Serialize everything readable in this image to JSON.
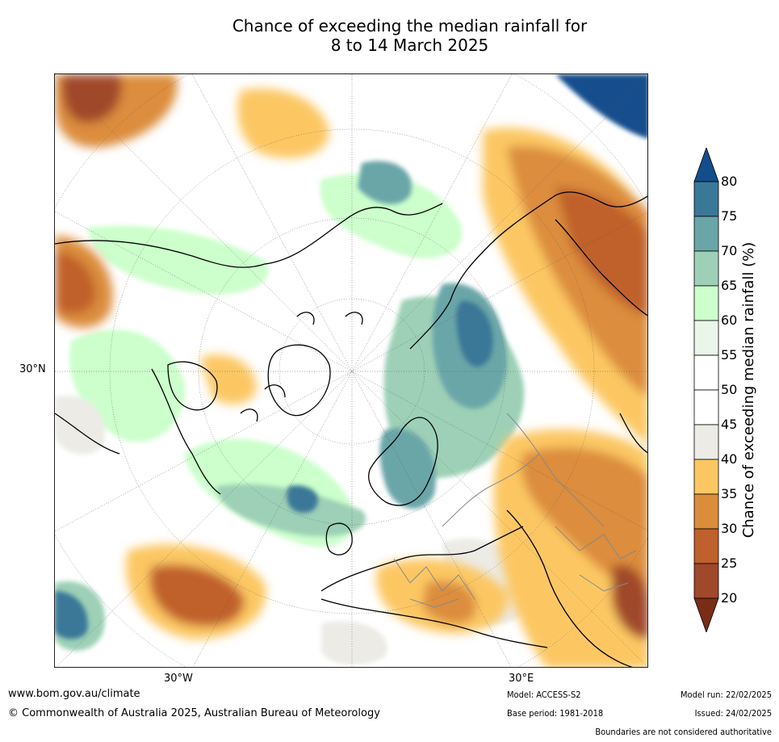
{
  "title": {
    "line1": "Chance of exceeding the median rainfall for",
    "line2": "8 to 14 March 2025"
  },
  "map": {
    "lat_label": "30°N",
    "lon_labels": [
      "30°W",
      "30°E"
    ]
  },
  "colorbar": {
    "label": "Chance of exceeding median rainfall (%)",
    "ticks": [
      "80",
      "75",
      "70",
      "65",
      "60",
      "55",
      "50",
      "45",
      "40",
      "35",
      "30",
      "25",
      "20"
    ],
    "colors": {
      "above_80": "#124e8c",
      "75_80": "#3a7898",
      "70_75": "#6aa6a8",
      "65_70": "#9dd0b6",
      "60_65": "#ccffcc",
      "55_60": "#eaf6ea",
      "50_55": "#ffffff",
      "45_50": "#ffffff",
      "40_45": "#ecebe6",
      "35_40": "#fcc763",
      "30_35": "#dc8d3c",
      "25_30": "#c0602c",
      "20_25": "#a0482a",
      "below_20": "#7a2c16"
    }
  },
  "footer": {
    "website": "www.bom.gov.au/climate",
    "copyright": "© Commonwealth of Australia 2025, Australian Bureau of Meteorology",
    "model": "Model: ACCESS-S2",
    "base_period": "Base period: 1981-2018",
    "model_run": "Model run: 22/02/2025",
    "issued": "Issued: 24/02/2025",
    "disclaimer": "Boundaries are not considered authoritative"
  }
}
